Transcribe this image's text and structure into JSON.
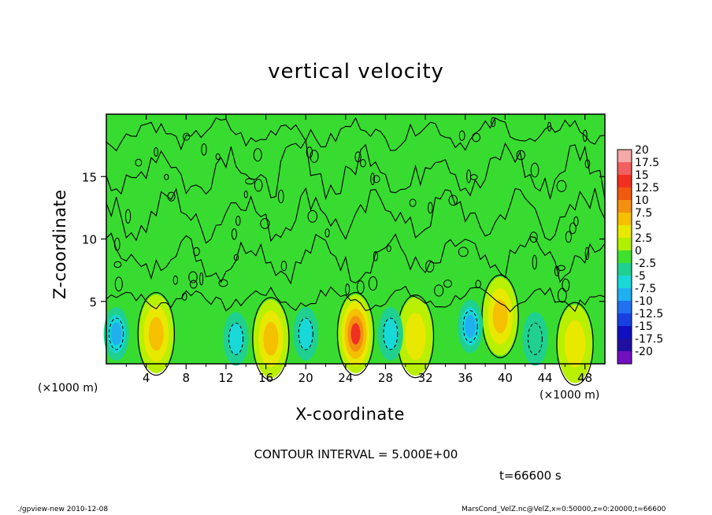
{
  "chart_data": {
    "type": "heatmap",
    "title": "vertical velocity",
    "xlabel": "X-coordinate",
    "ylabel": "Z-coordinate",
    "x_unit_left": "(×1000 m)",
    "x_unit_right": "(×1000 m)",
    "xlim": [
      0,
      50
    ],
    "ylim": [
      0,
      20
    ],
    "x_ticks": [
      "4",
      "8",
      "12",
      "16",
      "20",
      "24",
      "28",
      "32",
      "36",
      "40",
      "44",
      "48"
    ],
    "x_tick_values": [
      4,
      8,
      12,
      16,
      20,
      24,
      28,
      32,
      36,
      40,
      44,
      48
    ],
    "y_ticks": [
      "5",
      "10",
      "15"
    ],
    "y_tick_values": [
      5,
      10,
      15
    ],
    "colorbar_labels": [
      "20",
      "17.5",
      "15",
      "12.5",
      "10",
      "7.5",
      "5",
      "2.5",
      "0",
      "-2.5",
      "-5",
      "-7.5",
      "-10",
      "-12.5",
      "-15",
      "-17.5",
      "-20"
    ],
    "colorbar_colors": [
      "#f5a8a8",
      "#f06060",
      "#f03020",
      "#f05a10",
      "#f49010",
      "#f4c000",
      "#e8e800",
      "#b0f000",
      "#40e030",
      "#20d090",
      "#18d8d8",
      "#20b0f0",
      "#2070f0",
      "#1840e0",
      "#1010c0",
      "#2010a0",
      "#7010c0"
    ],
    "contour_interval": "CONTOUR INTERVAL = 5.000E+00",
    "time": "t=66600 s",
    "features": [
      {
        "kind": "updraft",
        "x": 5.0,
        "z": 2.4,
        "peak": 7.5
      },
      {
        "kind": "updraft",
        "x": 16.5,
        "z": 2.0,
        "peak": 7.5
      },
      {
        "kind": "updraft",
        "x": 25.0,
        "z": 2.4,
        "peak": 12.5
      },
      {
        "kind": "updraft",
        "x": 31.0,
        "z": 2.2,
        "peak": 5
      },
      {
        "kind": "updraft",
        "x": 39.5,
        "z": 3.8,
        "peak": 7.5
      },
      {
        "kind": "updraft",
        "x": 47.0,
        "z": 1.6,
        "peak": 5
      },
      {
        "kind": "downdraft",
        "x": 1.0,
        "z": 2.4,
        "peak": -7.5
      },
      {
        "kind": "downdraft",
        "x": 13.0,
        "z": 2.0,
        "peak": -5
      },
      {
        "kind": "downdraft",
        "x": 20.0,
        "z": 2.4,
        "peak": -5
      },
      {
        "kind": "downdraft",
        "x": 28.5,
        "z": 2.4,
        "peak": -5
      },
      {
        "kind": "downdraft",
        "x": 36.5,
        "z": 3.0,
        "peak": -7.5
      },
      {
        "kind": "downdraft",
        "x": 43.0,
        "z": 2.0,
        "peak": -2.5
      }
    ]
  },
  "footer": {
    "left": "./gpview-new  2010-12-08",
    "right": "MarsCond_VelZ.nc@VelZ,x=0:50000,z=0:20000,t=66600"
  }
}
